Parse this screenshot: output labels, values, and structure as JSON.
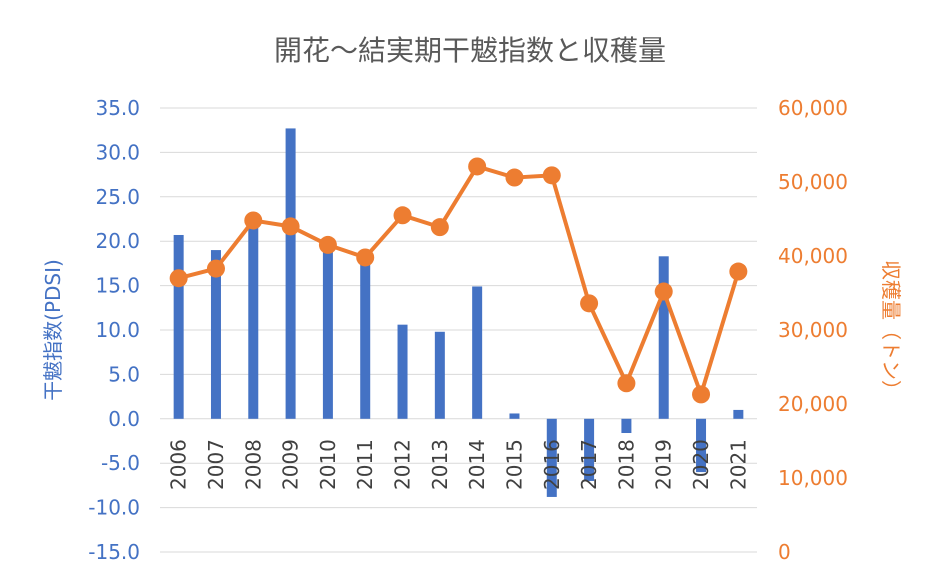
{
  "chart_data": {
    "type": "bar+line",
    "title": "開花～結実期干魃指数と収穫量",
    "categories": [
      "2006",
      "2007",
      "2008",
      "2009",
      "2010",
      "2011",
      "2012",
      "2013",
      "2014",
      "2015",
      "2016",
      "2017",
      "2018",
      "2019",
      "2020",
      "2021"
    ],
    "left_axis": {
      "label": "干魃指数(PDSI)",
      "range": [
        -15,
        35
      ],
      "ticks": [
        "35.0",
        "30.0",
        "25.0",
        "20.0",
        "15.0",
        "10.0",
        "5.0",
        "0.0",
        "-5.0",
        "-10.0",
        "-15.0"
      ]
    },
    "right_axis": {
      "label": "収穫量（トン）",
      "range": [
        0,
        60000
      ],
      "ticks": [
        "60,000",
        "50,000",
        "40,000",
        "30,000",
        "20,000",
        "10,000",
        "0"
      ]
    },
    "series": [
      {
        "type": "bar",
        "axis": "left",
        "color": "#4472C4",
        "values": [
          20.7,
          19.0,
          22.0,
          32.7,
          19.2,
          18.5,
          10.6,
          9.8,
          14.9,
          0.6,
          -8.8,
          -7.0,
          -1.6,
          18.3,
          -6.0,
          1.0
        ]
      },
      {
        "type": "line",
        "axis": "right",
        "color": "#ED7D31",
        "values": [
          37000,
          38300,
          44800,
          44000,
          41500,
          39800,
          45500,
          43900,
          52100,
          50600,
          50900,
          33600,
          22800,
          35200,
          21300,
          37900
        ]
      }
    ],
    "grid": true,
    "legend": "none"
  }
}
